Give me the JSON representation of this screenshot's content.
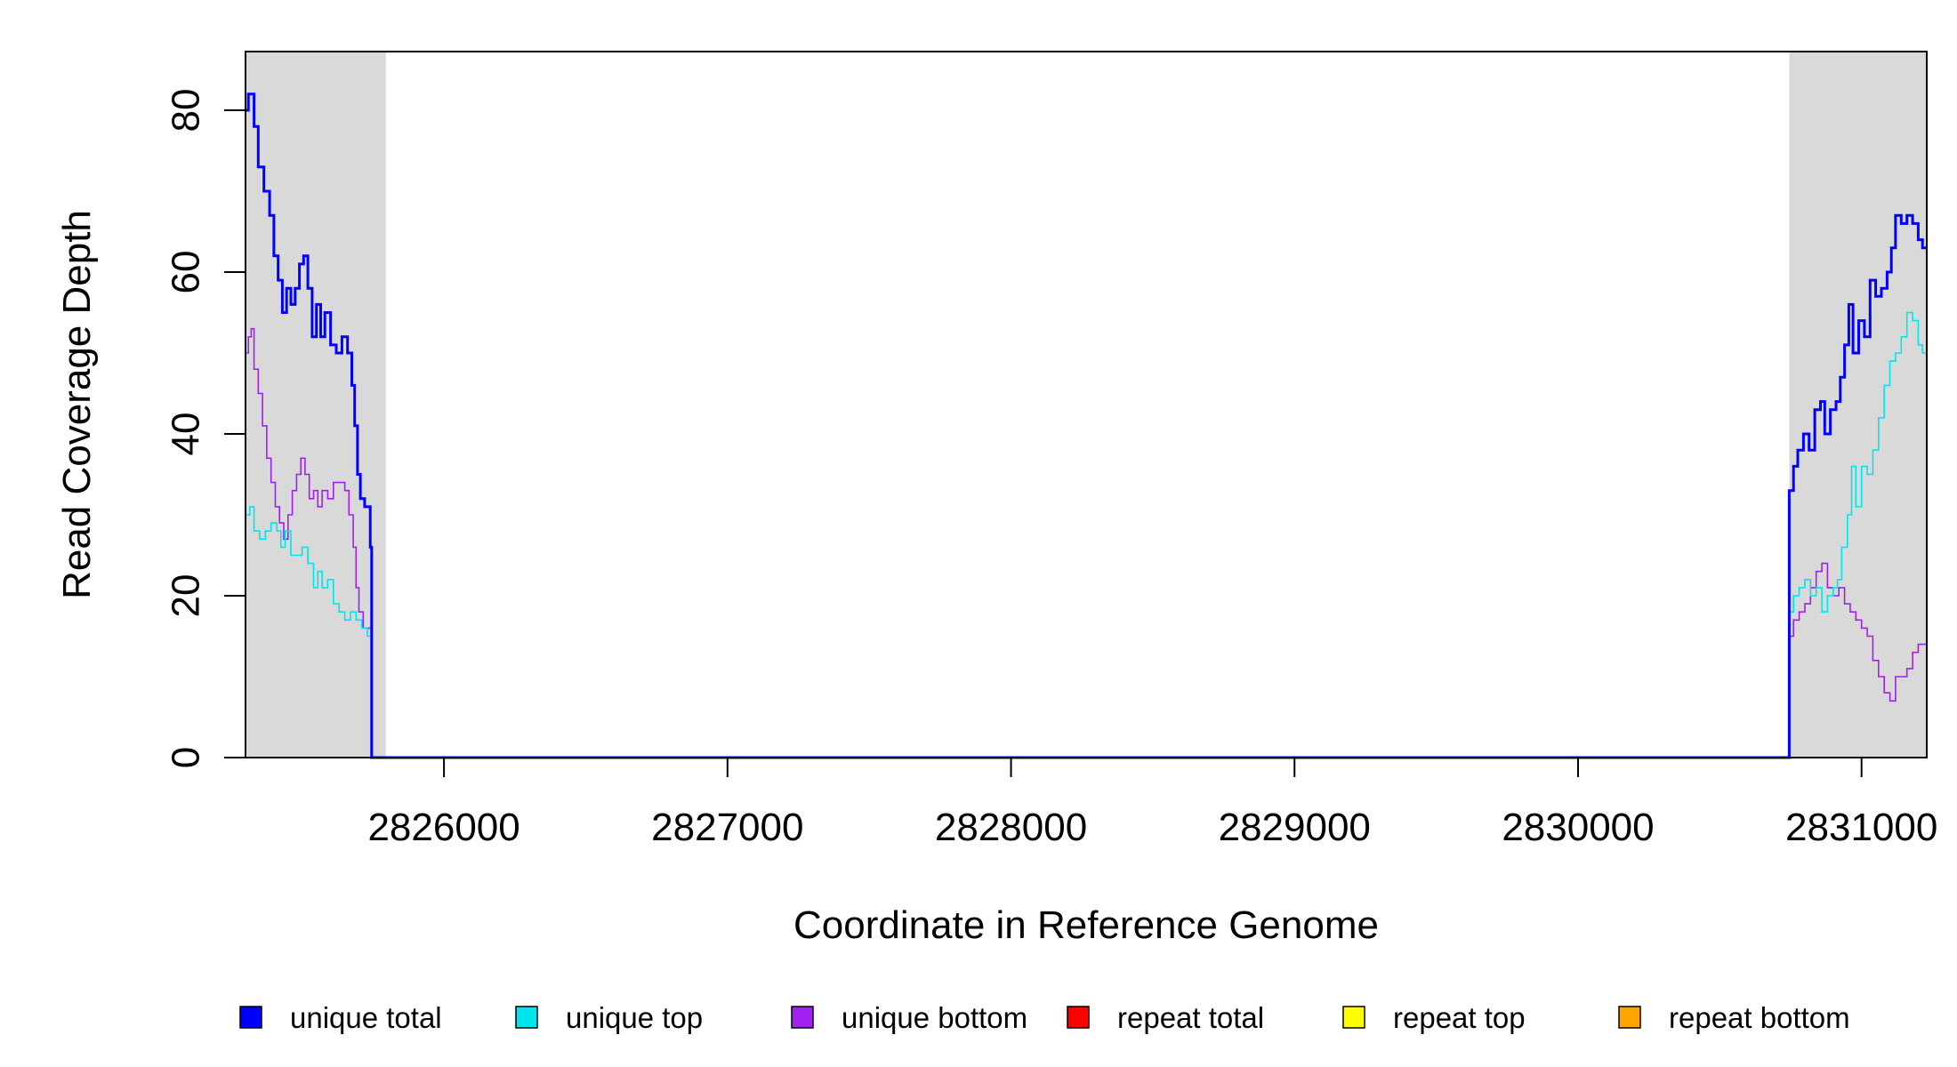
{
  "chart_data": {
    "type": "line",
    "title": "",
    "xlabel": "Coordinate in Reference Genome",
    "ylabel": "Read Coverage Depth",
    "xlim": [
      2825300,
      2831230
    ],
    "ylim": [
      0,
      85
    ],
    "x_ticks": [
      2826000,
      2827000,
      2828000,
      2829000,
      2830000,
      2831000
    ],
    "x_tick_labels": [
      "2826000",
      "2827000",
      "2828000",
      "2829000",
      "2830000",
      "2831000"
    ],
    "y_ticks": [
      0,
      20,
      40,
      60,
      80
    ],
    "y_tick_labels": [
      "0",
      "20",
      "40",
      "60",
      "80"
    ],
    "shaded_regions": [
      {
        "from": 2825300,
        "to": 2825795,
        "color": "#d9d9d9"
      },
      {
        "from": 2830745,
        "to": 2831230,
        "color": "#d9d9d9"
      }
    ],
    "grid": false,
    "legend_position": "bottom",
    "series": [
      {
        "name": "unique total",
        "color": "#0000ff",
        "stroke": 3,
        "points": [
          [
            2825300,
            80
          ],
          [
            2825310,
            82
          ],
          [
            2825330,
            78
          ],
          [
            2825345,
            73
          ],
          [
            2825365,
            70
          ],
          [
            2825385,
            67
          ],
          [
            2825400,
            62
          ],
          [
            2825415,
            59
          ],
          [
            2825430,
            55
          ],
          [
            2825445,
            58
          ],
          [
            2825460,
            56
          ],
          [
            2825475,
            58
          ],
          [
            2825490,
            61
          ],
          [
            2825505,
            62
          ],
          [
            2825520,
            58
          ],
          [
            2825535,
            52
          ],
          [
            2825550,
            56
          ],
          [
            2825565,
            52
          ],
          [
            2825580,
            55
          ],
          [
            2825600,
            51
          ],
          [
            2825620,
            50
          ],
          [
            2825640,
            52
          ],
          [
            2825660,
            50
          ],
          [
            2825675,
            46
          ],
          [
            2825685,
            41
          ],
          [
            2825695,
            35
          ],
          [
            2825705,
            32
          ],
          [
            2825720,
            31
          ],
          [
            2825730,
            31
          ],
          [
            2825740,
            26
          ],
          [
            2825745,
            0
          ],
          [
            2830740,
            0
          ],
          [
            2830745,
            33
          ],
          [
            2830760,
            36
          ],
          [
            2830775,
            38
          ],
          [
            2830795,
            40
          ],
          [
            2830815,
            38
          ],
          [
            2830835,
            43
          ],
          [
            2830855,
            44
          ],
          [
            2830870,
            40
          ],
          [
            2830890,
            43
          ],
          [
            2830910,
            44
          ],
          [
            2830925,
            47
          ],
          [
            2830940,
            51
          ],
          [
            2830955,
            56
          ],
          [
            2830970,
            50
          ],
          [
            2830990,
            54
          ],
          [
            2831010,
            52
          ],
          [
            2831030,
            59
          ],
          [
            2831050,
            57
          ],
          [
            2831070,
            58
          ],
          [
            2831090,
            60
          ],
          [
            2831105,
            63
          ],
          [
            2831120,
            67
          ],
          [
            2831140,
            66
          ],
          [
            2831160,
            67
          ],
          [
            2831180,
            66
          ],
          [
            2831200,
            64
          ],
          [
            2831215,
            63
          ]
        ]
      },
      {
        "name": "unique top",
        "color": "#00e5ee",
        "stroke": 1.6,
        "points": [
          [
            2825300,
            30
          ],
          [
            2825315,
            31
          ],
          [
            2825330,
            28
          ],
          [
            2825350,
            27
          ],
          [
            2825370,
            28
          ],
          [
            2825390,
            29
          ],
          [
            2825410,
            28
          ],
          [
            2825425,
            26
          ],
          [
            2825440,
            28
          ],
          [
            2825460,
            25
          ],
          [
            2825480,
            25
          ],
          [
            2825500,
            26
          ],
          [
            2825520,
            24
          ],
          [
            2825540,
            21
          ],
          [
            2825555,
            23
          ],
          [
            2825570,
            21
          ],
          [
            2825590,
            22
          ],
          [
            2825610,
            19
          ],
          [
            2825630,
            18
          ],
          [
            2825650,
            17
          ],
          [
            2825670,
            18
          ],
          [
            2825690,
            17
          ],
          [
            2825710,
            16
          ],
          [
            2825730,
            15
          ],
          [
            2825740,
            15
          ],
          [
            2825745,
            0
          ],
          [
            2830740,
            0
          ],
          [
            2830745,
            18
          ],
          [
            2830760,
            20
          ],
          [
            2830780,
            21
          ],
          [
            2830800,
            22
          ],
          [
            2830820,
            20
          ],
          [
            2830840,
            21
          ],
          [
            2830860,
            18
          ],
          [
            2830880,
            20
          ],
          [
            2830900,
            21
          ],
          [
            2830915,
            22
          ],
          [
            2830930,
            26
          ],
          [
            2830950,
            30
          ],
          [
            2830965,
            36
          ],
          [
            2830980,
            31
          ],
          [
            2831000,
            36
          ],
          [
            2831020,
            35
          ],
          [
            2831040,
            38
          ],
          [
            2831060,
            42
          ],
          [
            2831080,
            46
          ],
          [
            2831100,
            49
          ],
          [
            2831120,
            50
          ],
          [
            2831140,
            52
          ],
          [
            2831160,
            55
          ],
          [
            2831180,
            54
          ],
          [
            2831200,
            51
          ],
          [
            2831215,
            50
          ]
        ]
      },
      {
        "name": "unique bottom",
        "color": "#a020f0",
        "stroke": 1.6,
        "points": [
          [
            2825300,
            50
          ],
          [
            2825310,
            52
          ],
          [
            2825320,
            53
          ],
          [
            2825330,
            48
          ],
          [
            2825345,
            45
          ],
          [
            2825360,
            41
          ],
          [
            2825375,
            37
          ],
          [
            2825390,
            34
          ],
          [
            2825405,
            31
          ],
          [
            2825420,
            29
          ],
          [
            2825435,
            27
          ],
          [
            2825450,
            30
          ],
          [
            2825465,
            33
          ],
          [
            2825480,
            35
          ],
          [
            2825495,
            37
          ],
          [
            2825510,
            35
          ],
          [
            2825525,
            32
          ],
          [
            2825540,
            33
          ],
          [
            2825555,
            31
          ],
          [
            2825570,
            33
          ],
          [
            2825590,
            32
          ],
          [
            2825610,
            34
          ],
          [
            2825630,
            34
          ],
          [
            2825650,
            33
          ],
          [
            2825665,
            30
          ],
          [
            2825680,
            26
          ],
          [
            2825690,
            21
          ],
          [
            2825700,
            18
          ],
          [
            2825715,
            16
          ],
          [
            2825730,
            16
          ],
          [
            2825740,
            16
          ],
          [
            2825745,
            0
          ],
          [
            2830740,
            0
          ],
          [
            2830745,
            15
          ],
          [
            2830760,
            17
          ],
          [
            2830780,
            18
          ],
          [
            2830800,
            19
          ],
          [
            2830820,
            21
          ],
          [
            2830840,
            23
          ],
          [
            2830860,
            24
          ],
          [
            2830880,
            21
          ],
          [
            2830900,
            20
          ],
          [
            2830920,
            21
          ],
          [
            2830940,
            19
          ],
          [
            2830960,
            18
          ],
          [
            2830980,
            17
          ],
          [
            2831000,
            16
          ],
          [
            2831020,
            15
          ],
          [
            2831040,
            12
          ],
          [
            2831060,
            10
          ],
          [
            2831080,
            8
          ],
          [
            2831100,
            7
          ],
          [
            2831120,
            10
          ],
          [
            2831140,
            10
          ],
          [
            2831160,
            11
          ],
          [
            2831180,
            13
          ],
          [
            2831200,
            14
          ],
          [
            2831215,
            14
          ]
        ]
      },
      {
        "name": "repeat total",
        "color": "#ff0000",
        "stroke": 1.6,
        "points": [
          [
            2825300,
            0
          ],
          [
            2831230,
            0
          ]
        ]
      },
      {
        "name": "repeat top",
        "color": "#ffff00",
        "stroke": 1.6,
        "points": [
          [
            2825300,
            0
          ],
          [
            2831230,
            0
          ]
        ]
      },
      {
        "name": "repeat bottom",
        "color": "#ffa500",
        "stroke": 1.6,
        "points": [
          [
            2825300,
            0
          ],
          [
            2831230,
            0
          ]
        ]
      }
    ]
  }
}
